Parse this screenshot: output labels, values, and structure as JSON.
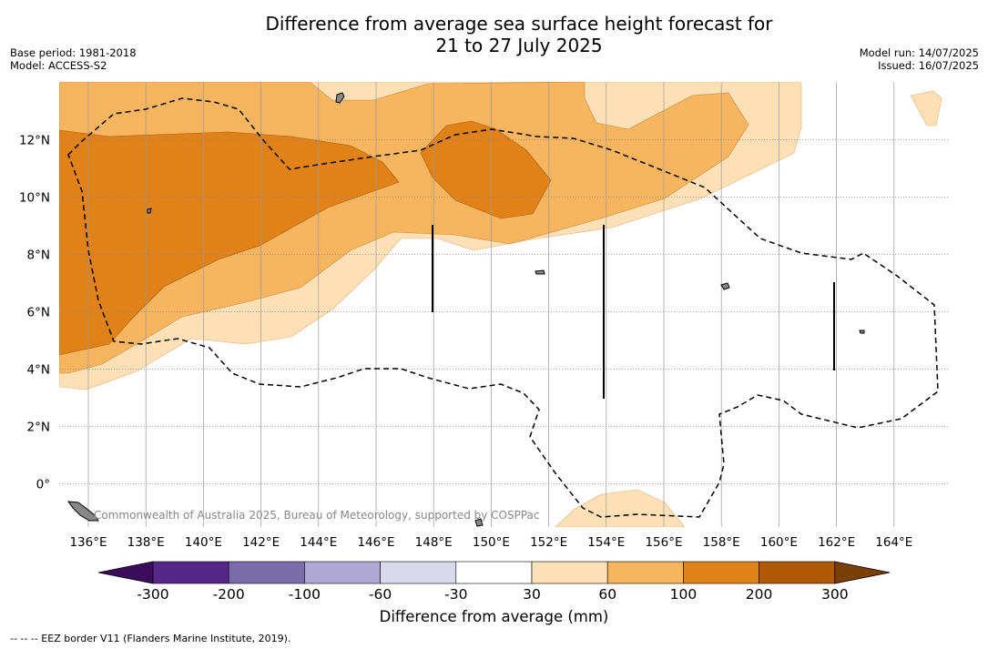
{
  "header": {
    "title_line1": "Difference from average sea surface height forecast for",
    "title_line2": "21 to 27 July 2025",
    "base_period": "Base period: 1981-2018",
    "model": "Model: ACCESS-S2",
    "model_run": "Model run: 14/07/2025",
    "issued": "Issued: 16/07/2025"
  },
  "map": {
    "credit": "Commonwealth of Australia 2025, Bureau of Meteorology, supported by COSPPac",
    "lon_labels": [
      "136°E",
      "138°E",
      "140°E",
      "142°E",
      "144°E",
      "146°E",
      "148°E",
      "150°E",
      "152°E",
      "154°E",
      "156°E",
      "158°E",
      "160°E",
      "162°E",
      "164°E"
    ],
    "lat_labels": [
      "12°N",
      "10°N",
      "8°N",
      "6°N",
      "4°N",
      "2°N",
      "0°"
    ],
    "fill_colors": {
      "c30_60": "#fde0b6",
      "c60_100": "#f8b560",
      "c100_200": "#e08218",
      "land": "#888888"
    }
  },
  "colorbar": {
    "title": "Difference from average (mm)",
    "ticks": [
      "-300",
      "-200",
      "-100",
      "-60",
      "-30",
      "30",
      "60",
      "100",
      "200",
      "300"
    ],
    "colors": [
      "#3b0b5c",
      "#55268a",
      "#7b6cab",
      "#aea8d3",
      "#d9d9ec",
      "#ffffff",
      "#fde0b6",
      "#f8b560",
      "#e08218",
      "#b05a08",
      "#7a3f05"
    ]
  },
  "footer": {
    "legend_text": "--  --  -- EEZ border V11 (Flanders Marine Institute, 2019)."
  }
}
